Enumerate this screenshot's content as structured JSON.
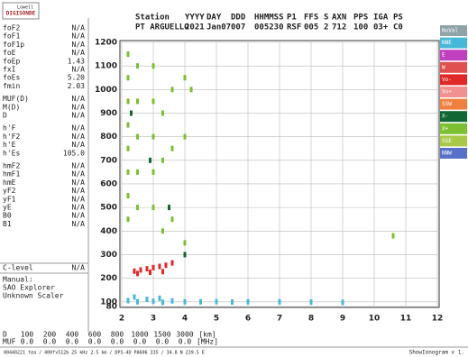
{
  "logo": {
    "line1": "Lowell",
    "line2": "DIGISONDE"
  },
  "header": [
    {
      "label": "Station",
      "value": "PT ARGUELLO"
    },
    {
      "label": "YYYY",
      "value": "2021"
    },
    {
      "label": "DAY",
      "value": "Jan07"
    },
    {
      "label": "DDD",
      "value": "007"
    },
    {
      "label": "HHMMSS",
      "value": "005230"
    },
    {
      "label": "P1",
      "value": "RSF"
    },
    {
      "label": "FFS",
      "value": "005"
    },
    {
      "label": "S",
      "value": "2"
    },
    {
      "label": "AXN",
      "value": "712"
    },
    {
      "label": "PPS",
      "value": "100"
    },
    {
      "label": "IGA",
      "value": "03+"
    },
    {
      "label": "PS",
      "value": "C0"
    }
  ],
  "params": [
    [
      "foF2",
      "N/A"
    ],
    [
      "foF1",
      "N/A"
    ],
    [
      "foF1p",
      "N/A"
    ],
    [
      "foE",
      "N/A"
    ],
    [
      "foEp",
      "1.43"
    ],
    [
      "fxI",
      "N/A"
    ],
    [
      "foEs",
      "5.20"
    ],
    [
      "fmin",
      "2.03"
    ],
    [
      "MUF(D)",
      "N/A"
    ],
    [
      "M(D)",
      "N/A"
    ],
    [
      "D",
      "N/A"
    ],
    [
      "h'F",
      "N/A"
    ],
    [
      "h'F2",
      "N/A"
    ],
    [
      "h'E",
      "N/A"
    ],
    [
      "h'Es",
      "105.0"
    ],
    [
      "hmF2",
      "N/A"
    ],
    [
      "hmF1",
      "N/A"
    ],
    [
      "hmE",
      "N/A"
    ],
    [
      "yF2",
      "N/A"
    ],
    [
      "yF1",
      "N/A"
    ],
    [
      "yE",
      "N/A"
    ],
    [
      "B0",
      "N/A"
    ],
    [
      "B1",
      "N/A"
    ]
  ],
  "clevel": [
    "C-level",
    "N/A"
  ],
  "scaler": [
    "Manual:",
    "SAO Explorer",
    "Unknown Scaler"
  ],
  "distance_table": {
    "row1": {
      "label": "D",
      "values": [
        "100",
        "200",
        "400",
        "600",
        "800",
        "1000",
        "1500",
        "3000",
        "[km]"
      ]
    },
    "row2": {
      "label": "MUF",
      "values": [
        "0.0",
        "0.0",
        "0.0",
        "0.0",
        "0.0",
        "0.0",
        "0.0",
        "0.0",
        "[MHz]"
      ]
    }
  },
  "footer": {
    "left": "00440221 tea / 400fv512b 25 kHz 2.5 km / DPS-4D PA606 335 / 34.8 N 239.5 E",
    "right": "ShowIonogram v 1."
  },
  "chart_data": {
    "type": "scatter",
    "xlim": [
      2,
      12
    ],
    "xticks": [
      2,
      3,
      4,
      5,
      6,
      7,
      8,
      9,
      10,
      11,
      12
    ],
    "ylim": [
      80,
      1200
    ],
    "yticks": [
      80,
      100,
      200,
      300,
      400,
      500,
      600,
      700,
      800,
      900,
      1000,
      1100,
      1200
    ],
    "grid": true,
    "series": [
      {
        "name": "NoVal",
        "color": "#8fa3a8",
        "x": [],
        "y": []
      },
      {
        "name": "NNE",
        "color": "#48b8d8",
        "x": [
          2.2,
          2.5,
          2.8,
          3.0,
          3.3,
          3.6,
          4.0,
          4.5,
          5.0,
          5.5,
          6.0,
          7.0,
          8.0,
          9.0,
          2.4,
          3.2
        ],
        "y": [
          105,
          100,
          110,
          102,
          98,
          104,
          100,
          100,
          101,
          99,
          100,
          100,
          99,
          98,
          120,
          115
        ]
      },
      {
        "name": "E",
        "color": "#c040c0",
        "x": [],
        "y": []
      },
      {
        "name": "W",
        "color": "#e05050",
        "x": [],
        "y": []
      },
      {
        "name": "Vo-",
        "color": "#e02828",
        "x": [
          2.4,
          2.6,
          2.8,
          3.0,
          3.2,
          3.4,
          3.6,
          2.5,
          2.9,
          3.3
        ],
        "y": [
          230,
          235,
          240,
          245,
          250,
          255,
          265,
          220,
          225,
          228
        ]
      },
      {
        "name": "Vo+",
        "color": "#f09090",
        "x": [],
        "y": []
      },
      {
        "name": "SSW",
        "color": "#f08040",
        "x": [],
        "y": []
      },
      {
        "name": "X-",
        "color": "#116633",
        "x": [
          2.3,
          2.9,
          3.5,
          4.0
        ],
        "y": [
          900,
          700,
          500,
          300
        ]
      },
      {
        "name": "X+",
        "color": "#7cbf30",
        "x": [
          2.2,
          2.2,
          2.2,
          2.2,
          2.2,
          2.2,
          2.2,
          2.2,
          2.5,
          2.5,
          2.5,
          2.5,
          2.5,
          3.0,
          3.0,
          3.0,
          3.0,
          3.0,
          3.3,
          3.3,
          3.3,
          3.6,
          3.6,
          3.6,
          4.0,
          4.0,
          4.0,
          4.2,
          10.6
        ],
        "y": [
          1150,
          1050,
          950,
          850,
          750,
          650,
          550,
          450,
          1100,
          950,
          800,
          650,
          500,
          1100,
          950,
          800,
          650,
          500,
          900,
          700,
          400,
          1000,
          750,
          450,
          1050,
          800,
          350,
          1000,
          380
        ]
      },
      {
        "name": "SSE",
        "color": "#a8c848",
        "x": [],
        "y": []
      },
      {
        "name": "NNW",
        "color": "#5870c8",
        "x": [],
        "y": []
      }
    ]
  }
}
